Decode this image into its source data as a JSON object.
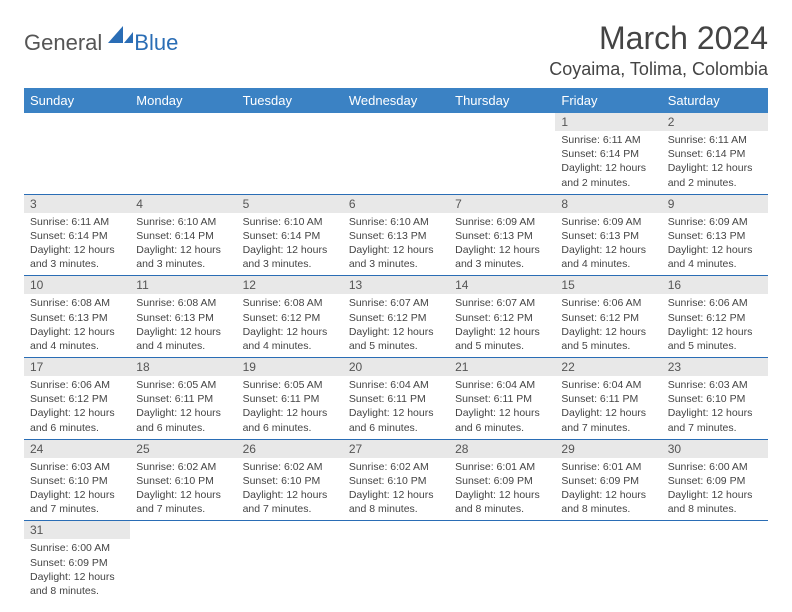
{
  "logo": {
    "general": "General",
    "blue": "Blue"
  },
  "title": "March 2024",
  "location": "Coyaima, Tolima, Colombia",
  "headers": [
    "Sunday",
    "Monday",
    "Tuesday",
    "Wednesday",
    "Thursday",
    "Friday",
    "Saturday"
  ],
  "colors": {
    "header_bg": "#3b82c4",
    "header_text": "#ffffff",
    "daynum_bg": "#e8e8e8",
    "border": "#2a6db5",
    "logo_blue": "#2a6db5"
  },
  "weeks": [
    [
      null,
      null,
      null,
      null,
      null,
      {
        "n": "1",
        "sr": "Sunrise: 6:11 AM",
        "ss": "Sunset: 6:14 PM",
        "dl": "Daylight: 12 hours and 2 minutes."
      },
      {
        "n": "2",
        "sr": "Sunrise: 6:11 AM",
        "ss": "Sunset: 6:14 PM",
        "dl": "Daylight: 12 hours and 2 minutes."
      }
    ],
    [
      {
        "n": "3",
        "sr": "Sunrise: 6:11 AM",
        "ss": "Sunset: 6:14 PM",
        "dl": "Daylight: 12 hours and 3 minutes."
      },
      {
        "n": "4",
        "sr": "Sunrise: 6:10 AM",
        "ss": "Sunset: 6:14 PM",
        "dl": "Daylight: 12 hours and 3 minutes."
      },
      {
        "n": "5",
        "sr": "Sunrise: 6:10 AM",
        "ss": "Sunset: 6:14 PM",
        "dl": "Daylight: 12 hours and 3 minutes."
      },
      {
        "n": "6",
        "sr": "Sunrise: 6:10 AM",
        "ss": "Sunset: 6:13 PM",
        "dl": "Daylight: 12 hours and 3 minutes."
      },
      {
        "n": "7",
        "sr": "Sunrise: 6:09 AM",
        "ss": "Sunset: 6:13 PM",
        "dl": "Daylight: 12 hours and 3 minutes."
      },
      {
        "n": "8",
        "sr": "Sunrise: 6:09 AM",
        "ss": "Sunset: 6:13 PM",
        "dl": "Daylight: 12 hours and 4 minutes."
      },
      {
        "n": "9",
        "sr": "Sunrise: 6:09 AM",
        "ss": "Sunset: 6:13 PM",
        "dl": "Daylight: 12 hours and 4 minutes."
      }
    ],
    [
      {
        "n": "10",
        "sr": "Sunrise: 6:08 AM",
        "ss": "Sunset: 6:13 PM",
        "dl": "Daylight: 12 hours and 4 minutes."
      },
      {
        "n": "11",
        "sr": "Sunrise: 6:08 AM",
        "ss": "Sunset: 6:13 PM",
        "dl": "Daylight: 12 hours and 4 minutes."
      },
      {
        "n": "12",
        "sr": "Sunrise: 6:08 AM",
        "ss": "Sunset: 6:12 PM",
        "dl": "Daylight: 12 hours and 4 minutes."
      },
      {
        "n": "13",
        "sr": "Sunrise: 6:07 AM",
        "ss": "Sunset: 6:12 PM",
        "dl": "Daylight: 12 hours and 5 minutes."
      },
      {
        "n": "14",
        "sr": "Sunrise: 6:07 AM",
        "ss": "Sunset: 6:12 PM",
        "dl": "Daylight: 12 hours and 5 minutes."
      },
      {
        "n": "15",
        "sr": "Sunrise: 6:06 AM",
        "ss": "Sunset: 6:12 PM",
        "dl": "Daylight: 12 hours and 5 minutes."
      },
      {
        "n": "16",
        "sr": "Sunrise: 6:06 AM",
        "ss": "Sunset: 6:12 PM",
        "dl": "Daylight: 12 hours and 5 minutes."
      }
    ],
    [
      {
        "n": "17",
        "sr": "Sunrise: 6:06 AM",
        "ss": "Sunset: 6:12 PM",
        "dl": "Daylight: 12 hours and 6 minutes."
      },
      {
        "n": "18",
        "sr": "Sunrise: 6:05 AM",
        "ss": "Sunset: 6:11 PM",
        "dl": "Daylight: 12 hours and 6 minutes."
      },
      {
        "n": "19",
        "sr": "Sunrise: 6:05 AM",
        "ss": "Sunset: 6:11 PM",
        "dl": "Daylight: 12 hours and 6 minutes."
      },
      {
        "n": "20",
        "sr": "Sunrise: 6:04 AM",
        "ss": "Sunset: 6:11 PM",
        "dl": "Daylight: 12 hours and 6 minutes."
      },
      {
        "n": "21",
        "sr": "Sunrise: 6:04 AM",
        "ss": "Sunset: 6:11 PM",
        "dl": "Daylight: 12 hours and 6 minutes."
      },
      {
        "n": "22",
        "sr": "Sunrise: 6:04 AM",
        "ss": "Sunset: 6:11 PM",
        "dl": "Daylight: 12 hours and 7 minutes."
      },
      {
        "n": "23",
        "sr": "Sunrise: 6:03 AM",
        "ss": "Sunset: 6:10 PM",
        "dl": "Daylight: 12 hours and 7 minutes."
      }
    ],
    [
      {
        "n": "24",
        "sr": "Sunrise: 6:03 AM",
        "ss": "Sunset: 6:10 PM",
        "dl": "Daylight: 12 hours and 7 minutes."
      },
      {
        "n": "25",
        "sr": "Sunrise: 6:02 AM",
        "ss": "Sunset: 6:10 PM",
        "dl": "Daylight: 12 hours and 7 minutes."
      },
      {
        "n": "26",
        "sr": "Sunrise: 6:02 AM",
        "ss": "Sunset: 6:10 PM",
        "dl": "Daylight: 12 hours and 7 minutes."
      },
      {
        "n": "27",
        "sr": "Sunrise: 6:02 AM",
        "ss": "Sunset: 6:10 PM",
        "dl": "Daylight: 12 hours and 8 minutes."
      },
      {
        "n": "28",
        "sr": "Sunrise: 6:01 AM",
        "ss": "Sunset: 6:09 PM",
        "dl": "Daylight: 12 hours and 8 minutes."
      },
      {
        "n": "29",
        "sr": "Sunrise: 6:01 AM",
        "ss": "Sunset: 6:09 PM",
        "dl": "Daylight: 12 hours and 8 minutes."
      },
      {
        "n": "30",
        "sr": "Sunrise: 6:00 AM",
        "ss": "Sunset: 6:09 PM",
        "dl": "Daylight: 12 hours and 8 minutes."
      }
    ],
    [
      {
        "n": "31",
        "sr": "Sunrise: 6:00 AM",
        "ss": "Sunset: 6:09 PM",
        "dl": "Daylight: 12 hours and 8 minutes."
      },
      null,
      null,
      null,
      null,
      null,
      null
    ]
  ]
}
